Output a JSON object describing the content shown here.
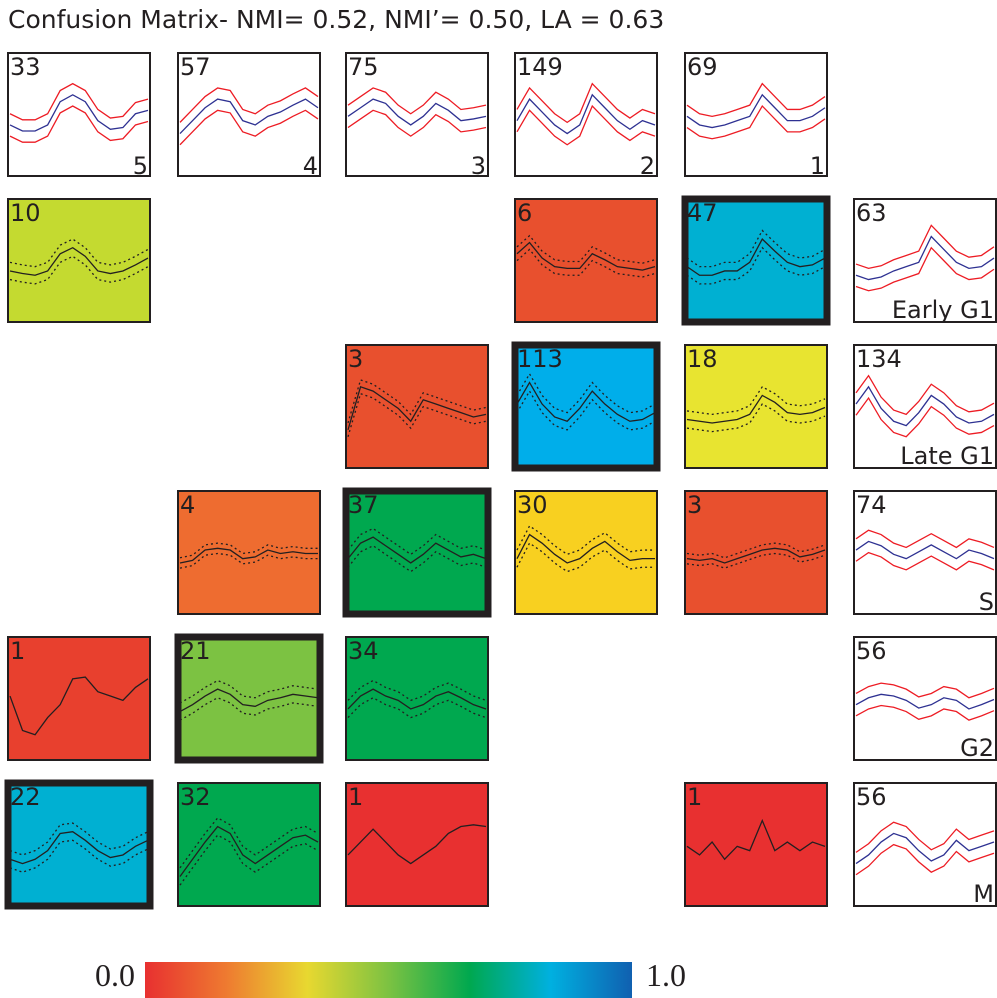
{
  "title": "Confusion Matrix- NMI= 0.52, NMI’= 0.50, LA = 0.63",
  "clusters": [
    {
      "label": "5",
      "count": 33,
      "mean": [
        0.45,
        0.38,
        0.38,
        0.45,
        0.72,
        0.8,
        0.72,
        0.5,
        0.4,
        0.42,
        0.58,
        0.62
      ],
      "spread": 0.13
    },
    {
      "label": "4",
      "count": 57,
      "mean": [
        0.35,
        0.5,
        0.65,
        0.75,
        0.72,
        0.5,
        0.45,
        0.55,
        0.6,
        0.68,
        0.75,
        0.65
      ],
      "spread": 0.13
    },
    {
      "label": "3",
      "count": 75,
      "mean": [
        0.55,
        0.65,
        0.75,
        0.7,
        0.55,
        0.45,
        0.55,
        0.7,
        0.62,
        0.5,
        0.52,
        0.55
      ],
      "spread": 0.13
    },
    {
      "label": "2",
      "count": 149,
      "mean": [
        0.5,
        0.75,
        0.6,
        0.45,
        0.35,
        0.45,
        0.8,
        0.65,
        0.5,
        0.4,
        0.5,
        0.45
      ],
      "spread": 0.13
    },
    {
      "label": "1",
      "count": 69,
      "mean": [
        0.55,
        0.45,
        0.42,
        0.45,
        0.5,
        0.55,
        0.8,
        0.65,
        0.5,
        0.5,
        0.55,
        0.65
      ],
      "spread": 0.13
    }
  ],
  "classes": [
    {
      "label": "Early G1",
      "count": 63,
      "mean": [
        0.4,
        0.35,
        0.38,
        0.45,
        0.5,
        0.55,
        0.85,
        0.7,
        0.55,
        0.48,
        0.5,
        0.6
      ],
      "spread": 0.13
    },
    {
      "label": "Late G1",
      "count": 134,
      "mean": [
        0.6,
        0.8,
        0.55,
        0.4,
        0.35,
        0.5,
        0.7,
        0.6,
        0.45,
        0.38,
        0.4,
        0.48
      ],
      "spread": 0.13
    },
    {
      "label": "S",
      "count": 74,
      "mean": [
        0.6,
        0.7,
        0.65,
        0.55,
        0.5,
        0.58,
        0.66,
        0.58,
        0.5,
        0.6,
        0.56,
        0.5
      ],
      "spread": 0.13
    },
    {
      "label": "G2",
      "count": 56,
      "mean": [
        0.5,
        0.58,
        0.62,
        0.6,
        0.55,
        0.46,
        0.5,
        0.58,
        0.55,
        0.45,
        0.5,
        0.56
      ],
      "spread": 0.13
    },
    {
      "label": "M",
      "count": 56,
      "mean": [
        0.35,
        0.45,
        0.6,
        0.7,
        0.65,
        0.5,
        0.38,
        0.45,
        0.62,
        0.5,
        0.55,
        0.6
      ],
      "spread": 0.13
    }
  ],
  "matrix": [
    [
      {
        "count": 10,
        "color": "#c4da30",
        "bold": false,
        "mean": [
          0.45,
          0.42,
          0.4,
          0.45,
          0.65,
          0.72,
          0.62,
          0.45,
          0.42,
          0.45,
          0.52,
          0.6
        ],
        "spread": 0.1
      },
      null,
      null,
      {
        "count": 6,
        "color": "#e8502e",
        "bold": false,
        "mean": [
          0.65,
          0.78,
          0.6,
          0.5,
          0.48,
          0.48,
          0.65,
          0.58,
          0.5,
          0.48,
          0.46,
          0.5
        ],
        "spread": 0.08
      },
      {
        "count": 47,
        "color": "#00b0d2",
        "bold": true,
        "mean": [
          0.5,
          0.4,
          0.4,
          0.45,
          0.45,
          0.55,
          0.82,
          0.68,
          0.55,
          0.5,
          0.52,
          0.6
        ],
        "spread": 0.1
      }
    ],
    [
      null,
      null,
      {
        "count": 3,
        "color": "#e8502e",
        "bold": false,
        "mean": [
          0.3,
          0.8,
          0.75,
          0.65,
          0.55,
          0.4,
          0.65,
          0.6,
          0.55,
          0.5,
          0.45,
          0.48
        ],
        "spread": 0.08
      },
      {
        "count": 113,
        "color": "#00aeea",
        "bold": true,
        "mean": [
          0.6,
          0.85,
          0.6,
          0.45,
          0.4,
          0.55,
          0.75,
          0.6,
          0.48,
          0.4,
          0.42,
          0.5
        ],
        "spread": 0.1
      },
      {
        "count": 18,
        "color": "#e8e430",
        "bold": false,
        "mean": [
          0.42,
          0.4,
          0.38,
          0.4,
          0.42,
          0.48,
          0.7,
          0.62,
          0.5,
          0.48,
          0.5,
          0.56
        ],
        "spread": 0.1
      }
    ],
    [
      null,
      {
        "count": 4,
        "color": "#ee6c30",
        "bold": false,
        "mean": [
          0.45,
          0.48,
          0.6,
          0.62,
          0.6,
          0.5,
          0.52,
          0.6,
          0.56,
          0.58,
          0.56,
          0.56
        ],
        "spread": 0.06
      },
      {
        "count": 37,
        "color": "#00a84f",
        "bold": true,
        "mean": [
          0.5,
          0.68,
          0.75,
          0.65,
          0.55,
          0.45,
          0.55,
          0.68,
          0.6,
          0.52,
          0.55,
          0.5
        ],
        "spread": 0.1
      },
      {
        "count": 30,
        "color": "#f8d020",
        "bold": false,
        "mean": [
          0.5,
          0.78,
          0.68,
          0.55,
          0.45,
          0.5,
          0.62,
          0.7,
          0.58,
          0.48,
          0.5,
          0.5
        ],
        "spread": 0.1
      },
      {
        "count": 3,
        "color": "#e8502e",
        "bold": false,
        "mean": [
          0.5,
          0.48,
          0.5,
          0.45,
          0.5,
          0.55,
          0.6,
          0.62,
          0.6,
          0.52,
          0.55,
          0.6
        ],
        "spread": 0.06
      }
    ],
    [
      {
        "count": 1,
        "color": "#e8402e",
        "bold": false,
        "mean": [
          0.6,
          0.2,
          0.15,
          0.35,
          0.5,
          0.8,
          0.82,
          0.65,
          0.6,
          0.55,
          0.7,
          0.8
        ],
        "spread": 0
      },
      {
        "count": 21,
        "color": "#7cc242",
        "bold": true,
        "mean": [
          0.42,
          0.5,
          0.6,
          0.68,
          0.62,
          0.5,
          0.48,
          0.55,
          0.58,
          0.62,
          0.6,
          0.58
        ],
        "spread": 0.1
      },
      {
        "count": 34,
        "color": "#00a84f",
        "bold": false,
        "mean": [
          0.45,
          0.6,
          0.68,
          0.6,
          0.55,
          0.45,
          0.5,
          0.6,
          0.65,
          0.58,
          0.5,
          0.45
        ],
        "spread": 0.1
      }
    ],
    [
      {
        "count": 22,
        "color": "#00b0d2",
        "bold": true,
        "mean": [
          0.4,
          0.35,
          0.4,
          0.5,
          0.7,
          0.72,
          0.62,
          0.5,
          0.42,
          0.45,
          0.55,
          0.62
        ],
        "spread": 0.1
      },
      {
        "count": 32,
        "color": "#00a84f",
        "bold": false,
        "mean": [
          0.2,
          0.4,
          0.6,
          0.78,
          0.7,
          0.45,
          0.35,
          0.45,
          0.55,
          0.65,
          0.68,
          0.6
        ],
        "spread": 0.1
      },
      {
        "count": 1,
        "color": "#e83030",
        "bold": false,
        "mean": [
          0.45,
          0.6,
          0.75,
          0.6,
          0.45,
          0.35,
          0.45,
          0.55,
          0.7,
          0.78,
          0.8,
          0.78
        ],
        "spread": 0
      },
      null,
      {
        "count": 1,
        "color": "#e83030",
        "bold": false,
        "mean": [
          0.55,
          0.45,
          0.6,
          0.4,
          0.55,
          0.5,
          0.85,
          0.5,
          0.6,
          0.5,
          0.6,
          0.55
        ],
        "spread": 0
      }
    ]
  ],
  "colorbar": {
    "colors": [
      "#e83030",
      "#ee7a30",
      "#e8d830",
      "#7cc242",
      "#00a84f",
      "#00b0e0",
      "#1060b0"
    ],
    "ticks": [
      {
        "value": 0,
        "label": "0.0"
      },
      {
        "value": 1,
        "label": "1.0"
      }
    ]
  }
}
